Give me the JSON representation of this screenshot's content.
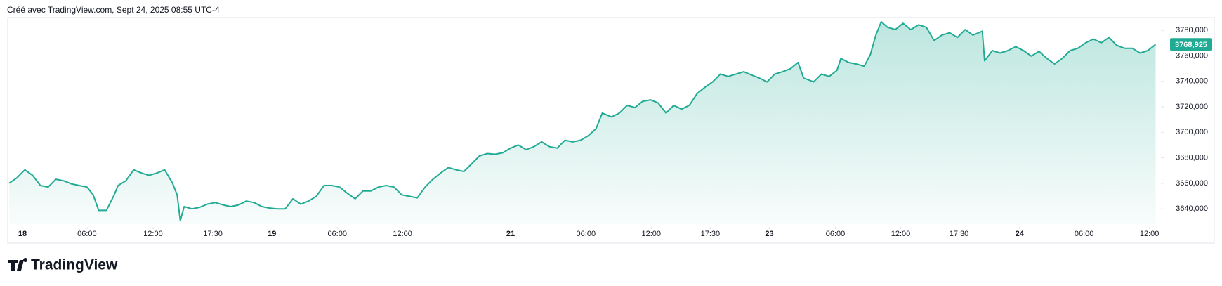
{
  "header": "Créé avec TradingView.com, Sept 24, 2025 08:55 UTC-4",
  "footer_logo": "TradingView",
  "chart_data": {
    "type": "area",
    "series": [
      {
        "color": "#22ab94",
        "x": [
          10,
          20,
          30,
          40,
          50,
          60,
          70,
          80,
          90,
          100,
          110,
          118,
          125,
          135,
          145,
          150,
          160,
          170,
          180,
          190,
          200,
          210,
          220,
          226,
          230,
          235,
          245,
          255,
          265,
          275,
          285,
          295,
          305,
          315,
          325,
          335,
          345,
          355,
          365,
          375,
          385,
          395,
          405,
          415,
          425,
          435,
          445,
          455,
          465,
          475,
          485,
          495,
          505,
          515,
          525,
          535,
          545,
          555,
          565,
          575,
          585,
          595,
          605,
          615,
          625,
          635,
          645,
          655,
          665,
          675,
          685,
          695,
          705,
          715,
          725,
          735,
          745,
          755,
          765,
          773,
          785,
          795,
          805,
          815,
          825,
          835,
          845,
          855,
          865,
          875,
          885,
          895,
          905,
          915,
          925,
          935,
          945,
          955,
          965,
          975,
          985,
          995,
          1005,
          1015,
          1025,
          1032,
          1045,
          1055,
          1065,
          1075,
          1080,
          1090,
          1100,
          1110,
          1118,
          1125,
          1132,
          1140,
          1150,
          1160,
          1170,
          1180,
          1190,
          1200,
          1210,
          1220,
          1230,
          1240,
          1250,
          1262,
          1265,
          1275,
          1285,
          1295,
          1305,
          1315,
          1325,
          1335,
          1345,
          1355,
          1365,
          1375,
          1385,
          1395,
          1405,
          1415,
          1425,
          1435,
          1445,
          1455,
          1465,
          1475,
          1485
        ],
        "values": [
          3660.2,
          3664.4,
          3670.6,
          3666.3,
          3658.3,
          3657.1,
          3663.2,
          3662,
          3659.6,
          3658.3,
          3657.1,
          3651,
          3638.8,
          3638.8,
          3651,
          3658.3,
          3662,
          3670.6,
          3668.1,
          3666.3,
          3668.1,
          3670.6,
          3660.2,
          3651,
          3630.8,
          3641.8,
          3640,
          3641.2,
          3643.7,
          3644.9,
          3643.1,
          3641.8,
          3643.1,
          3646.1,
          3644.9,
          3641.8,
          3640.6,
          3640,
          3640,
          3647.9,
          3643.7,
          3646.1,
          3649.8,
          3658.3,
          3658.3,
          3657.1,
          3652.2,
          3647.9,
          3654,
          3654,
          3657.1,
          3658.3,
          3657.1,
          3651,
          3649.8,
          3648.6,
          3657.1,
          3663.2,
          3668.1,
          3672.4,
          3670.6,
          3669.3,
          3675.4,
          3681.5,
          3683.4,
          3682.8,
          3684,
          3687.6,
          3690.1,
          3686.4,
          3688.8,
          3692.5,
          3688.8,
          3687.6,
          3693.8,
          3692.5,
          3693.8,
          3697.4,
          3702.9,
          3715.1,
          3712.1,
          3715.1,
          3721.2,
          3719.4,
          3724.3,
          3725.5,
          3723,
          3715.1,
          3721.2,
          3718.2,
          3721.2,
          3730.4,
          3735.3,
          3739.5,
          3745.7,
          3743.8,
          3745.7,
          3747.5,
          3745,
          3742.6,
          3739.5,
          3745.7,
          3747.5,
          3749.9,
          3754.8,
          3742.6,
          3739.5,
          3745.7,
          3743.8,
          3748.7,
          3757.9,
          3754.8,
          3753.6,
          3751.8,
          3761,
          3776.3,
          3786.7,
          3782.4,
          3780.6,
          3785.5,
          3780.6,
          3784.3,
          3782.4,
          3772,
          3776.3,
          3778.1,
          3774.4,
          3780.6,
          3776.3,
          3779.3,
          3756.1,
          3764.1,
          3762.2,
          3764.1,
          3767.2,
          3764.1,
          3759.8,
          3763.5,
          3758,
          3753.6,
          3758,
          3764.1,
          3765.9,
          3770.2,
          3773.2,
          3770.2,
          3774.4,
          3768.2,
          3765.9,
          3765.9,
          3762.2,
          3764.1,
          3768.925
        ]
      }
    ],
    "last_value": {
      "value": 3768.925,
      "label": "3768,925"
    },
    "xlim": [
      8,
      1490
    ],
    "xticks": [
      {
        "value": 27,
        "label": "18"
      },
      {
        "value": 110,
        "label": "06:00"
      },
      {
        "value": 195,
        "label": "12:00"
      },
      {
        "value": 272,
        "label": "17:30"
      },
      {
        "value": 348,
        "label": "19"
      },
      {
        "value": 432,
        "label": "06:00"
      },
      {
        "value": 516,
        "label": "12:00"
      },
      {
        "value": 655,
        "label": "21"
      },
      {
        "value": 752,
        "label": "06:00"
      },
      {
        "value": 836,
        "label": "12:00"
      },
      {
        "value": 912,
        "label": "17:30"
      },
      {
        "value": 988,
        "label": "23"
      },
      {
        "value": 1073,
        "label": "06:00"
      },
      {
        "value": 1157,
        "label": "12:00"
      },
      {
        "value": 1232,
        "label": "17:30"
      },
      {
        "value": 1310,
        "label": "24"
      },
      {
        "value": 1393,
        "label": "06:00"
      },
      {
        "value": 1477,
        "label": "12:00"
      }
    ],
    "ylim": [
      3628,
      3790
    ],
    "yticks": [
      {
        "value": 3640,
        "label": "3640,000"
      },
      {
        "value": 3660,
        "label": "3660,000"
      },
      {
        "value": 3680,
        "label": "3680,000"
      },
      {
        "value": 3700,
        "label": "3700,000"
      },
      {
        "value": 3720,
        "label": "3720,000"
      },
      {
        "value": 3740,
        "label": "3740,000"
      },
      {
        "value": 3760,
        "label": "3760,000"
      },
      {
        "value": 3780,
        "label": "3780,000"
      }
    ]
  }
}
